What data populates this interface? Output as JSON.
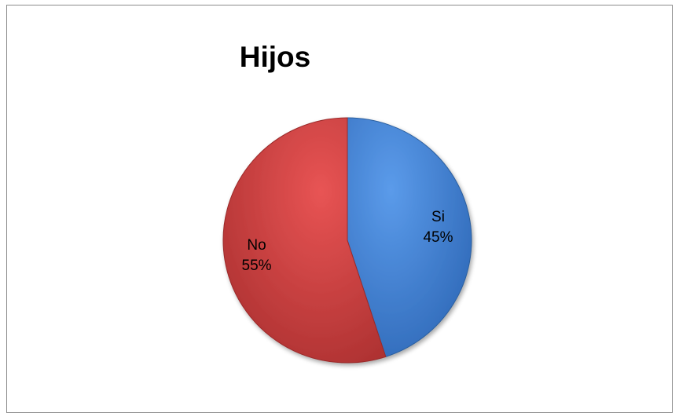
{
  "chart_data": {
    "type": "pie",
    "title": "Hijos",
    "slices": [
      {
        "label": "Si",
        "value": 45,
        "value_label": "45%",
        "color": "#4a86d6"
      },
      {
        "label": "No",
        "value": 55,
        "value_label": "55%",
        "color": "#d94545"
      }
    ],
    "legend": "none"
  }
}
